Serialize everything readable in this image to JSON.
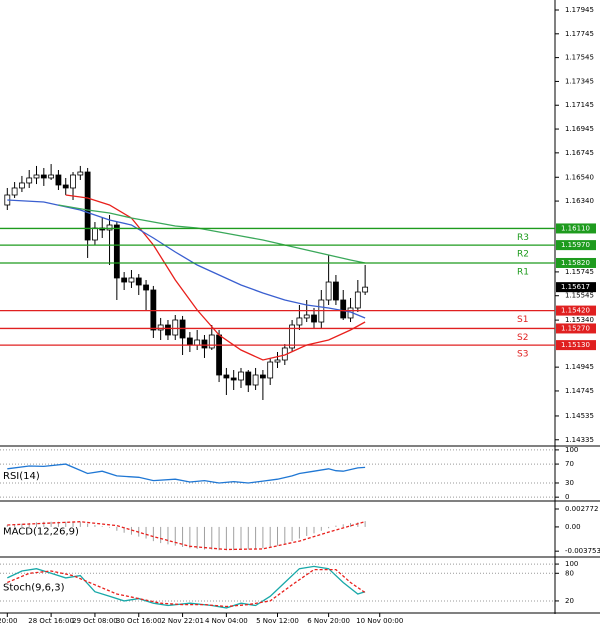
{
  "chart_data": [
    {
      "type": "candlestick",
      "xlim": [
        -1,
        75
      ],
      "ylim": [
        1.14291,
        1.18029
      ],
      "yticks": [
        1.17945,
        1.17745,
        1.17545,
        1.17345,
        1.17145,
        1.16945,
        1.16745,
        {
          "value": 1.1654,
          "label": "1.16540"
        },
        {
          "value": 1.1634,
          "label": "1.16340"
        },
        1.15745,
        1.15545,
        {
          "value": 1.1534,
          "label": "1.15340"
        },
        1.14945,
        1.14745,
        1.14535,
        1.14335
      ],
      "xticks": [
        {
          "value": 0,
          "label": "20:00"
        },
        {
          "value": 6,
          "label": "28 Oct 16:00"
        },
        {
          "value": 12,
          "label": "29 Oct 08:00"
        },
        {
          "value": 18,
          "label": "30 Oct 16:00"
        },
        {
          "value": 24,
          "label": "2 Nov 22:01"
        },
        {
          "value": 30,
          "label": "4 Nov 04:00"
        },
        {
          "value": 37,
          "label": "5 Nov 12:00"
        },
        {
          "value": 44,
          "label": "6 Nov 20:00"
        },
        {
          "value": 51,
          "label": "10 Nov 00:00"
        }
      ],
      "open": [
        1.16307,
        1.16391,
        1.1645,
        1.16492,
        1.16534,
        1.16559,
        1.16534,
        1.16559,
        1.16475,
        1.1645,
        1.16559,
        1.16584,
        1.16013,
        1.16114,
        1.16097,
        1.16139,
        1.15694,
        1.1566,
        1.15694,
        1.15635,
        1.15593,
        1.15257,
        1.15299,
        1.15215,
        1.15341,
        1.1519,
        1.15131,
        1.15173,
        1.15106,
        1.15215,
        1.14879,
        1.14854,
        1.14837,
        1.14904,
        1.14795,
        1.14879,
        1.14854,
        1.14988,
        1.15005,
        1.15106,
        1.15299,
        1.15358,
        1.15383,
        1.15324,
        1.15509,
        1.1566,
        1.15509,
        1.15358,
        1.15442,
        1.15576
      ],
      "high": [
        1.1645,
        1.165,
        1.16551,
        1.16601,
        1.16635,
        1.16618,
        1.16651,
        1.16601,
        1.16534,
        1.16584,
        1.16635,
        1.16618,
        1.16164,
        1.16198,
        1.16223,
        1.16164,
        1.15744,
        1.15761,
        1.15727,
        1.15677,
        1.15627,
        1.15358,
        1.15341,
        1.15383,
        1.15375,
        1.1524,
        1.15257,
        1.15215,
        1.15299,
        1.15257,
        1.14938,
        1.14921,
        1.14938,
        1.14921,
        1.14938,
        1.14921,
        1.15022,
        1.15072,
        1.15139,
        1.15341,
        1.15467,
        1.15509,
        1.15442,
        1.15593,
        1.15887,
        1.15719,
        1.15593,
        1.15526,
        1.15677,
        1.15803
      ],
      "low": [
        1.16265,
        1.16366,
        1.16416,
        1.1645,
        1.16483,
        1.16467,
        1.16517,
        1.16433,
        1.16391,
        1.16349,
        1.16517,
        1.15862,
        1.15971,
        1.1603,
        1.15803,
        1.15509,
        1.15593,
        1.1561,
        1.15551,
        1.15425,
        1.1519,
        1.15173,
        1.15173,
        1.15173,
        1.15047,
        1.15072,
        1.15089,
        1.15022,
        1.15089,
        1.1482,
        1.14711,
        1.14753,
        1.1477,
        1.14736,
        1.14753,
        1.14669,
        1.14795,
        1.14938,
        1.14963,
        1.15072,
        1.15257,
        1.15324,
        1.15274,
        1.15274,
        1.15467,
        1.15467,
        1.15341,
        1.15324,
        1.15408,
        1.15551
      ],
      "close": [
        1.16391,
        1.1645,
        1.16492,
        1.16534,
        1.16559,
        1.16534,
        1.16559,
        1.16475,
        1.1645,
        1.16559,
        1.16584,
        1.16013,
        1.16114,
        1.16097,
        1.16139,
        1.15694,
        1.1566,
        1.15694,
        1.15635,
        1.15593,
        1.15257,
        1.15299,
        1.15215,
        1.15341,
        1.1519,
        1.15131,
        1.15173,
        1.15106,
        1.15215,
        1.14879,
        1.14854,
        1.14837,
        1.14904,
        1.14795,
        1.14879,
        1.14854,
        1.14988,
        1.15005,
        1.15106,
        1.15299,
        1.15358,
        1.15383,
        1.15324,
        1.15509,
        1.1566,
        1.15509,
        1.15358,
        1.15442,
        1.15576,
        1.15617
      ],
      "up_color": "#ffffff",
      "down_color": "#000000",
      "series": [
        {
          "color": "#e8201c",
          "x": [
            8,
            11,
            14,
            17,
            20,
            23,
            26,
            29,
            32,
            35,
            38,
            41,
            44,
            47,
            49
          ],
          "values": [
            1.16391,
            1.16366,
            1.16307,
            1.16198,
            1.15971,
            1.15677,
            1.15425,
            1.15215,
            1.15089,
            1.15005,
            1.15047,
            1.15131,
            1.15173,
            1.15257,
            1.15324
          ]
        },
        {
          "color": "#3a5fd0",
          "x": [
            0,
            5,
            10,
            14,
            17,
            20,
            23,
            26,
            29,
            32,
            35,
            38,
            41,
            44,
            47,
            49
          ],
          "values": [
            1.16349,
            1.16332,
            1.16265,
            1.16181,
            1.16139,
            1.1603,
            1.15912,
            1.15803,
            1.15719,
            1.15635,
            1.15568,
            1.15509,
            1.15467,
            1.15442,
            1.15408,
            1.15358
          ]
        },
        {
          "color": "#3aa85a",
          "x": [
            7,
            11,
            14,
            17,
            20,
            23,
            26,
            29,
            32,
            35,
            38,
            41,
            44,
            47,
            49
          ],
          "values": [
            1.16307,
            1.16265,
            1.1624,
            1.16198,
            1.16164,
            1.16131,
            1.16114,
            1.1608,
            1.16047,
            1.16013,
            1.15971,
            1.15929,
            1.15887,
            1.15845,
            1.1582
          ]
        }
      ],
      "levels": [
        {
          "label": "R3",
          "value": 1.1611,
          "value_label": "1.16110",
          "color": "#1e9b1e"
        },
        {
          "label": "R2",
          "value": 1.1597,
          "value_label": "1.15970",
          "color": "#1e9b1e"
        },
        {
          "label": "R1",
          "value": 1.1582,
          "value_label": "1.15820",
          "color": "#1e9b1e"
        },
        {
          "label": "S1",
          "value": 1.1542,
          "value_label": "1.15420",
          "color": "#e02020"
        },
        {
          "label": "S2",
          "value": 1.1527,
          "value_label": "1.15270",
          "color": "#e02020"
        },
        {
          "label": "S3",
          "value": 1.1513,
          "value_label": "1.15130",
          "color": "#e02020"
        }
      ],
      "last": 1.15617
    },
    {
      "type": "line",
      "title": "RSI(14)",
      "ylim": [
        -6,
        104
      ],
      "yticks": [
        100,
        70,
        30,
        0
      ],
      "grid": true,
      "series": [
        {
          "color": "#1f77d4",
          "x": [
            0,
            3,
            5,
            8,
            11,
            13,
            15,
            18,
            20,
            23,
            25,
            27,
            29,
            31,
            33,
            35,
            37,
            39,
            40,
            42,
            44,
            45,
            46,
            48,
            49
          ],
          "values": [
            60,
            66,
            65,
            70,
            50,
            55,
            45,
            42,
            35,
            38,
            32,
            35,
            30,
            33,
            30,
            34,
            38,
            45,
            50,
            55,
            60,
            56,
            55,
            62,
            63
          ]
        }
      ]
    },
    {
      "type": "macd",
      "title": "MACD(12,26,9)",
      "ylim": [
        -0.0045,
        0.0037
      ],
      "yticks": [
        0.002772,
        {
          "value": 0,
          "label": "0.00"
        },
        -0.003753
      ],
      "histogram": {
        "color": "#a0a0a0",
        "values": [
          0.0003,
          0.0004,
          0.0005,
          0.0006,
          0.0007,
          0.0008,
          0.0008,
          0.0008,
          0.0008,
          0.0008,
          0.0008,
          0.0005,
          0.0003,
          0.0001,
          -0.0001,
          -0.0006,
          -0.0009,
          -0.0012,
          -0.0015,
          -0.0018,
          -0.0022,
          -0.0025,
          -0.0027,
          -0.0029,
          -0.0031,
          -0.0033,
          -0.0034,
          -0.0035,
          -0.0035,
          -0.0036,
          -0.0036,
          -0.0036,
          -0.0035,
          -0.0035,
          -0.0034,
          -0.0033,
          -0.0031,
          -0.0029,
          -0.0026,
          -0.0022,
          -0.0018,
          -0.0014,
          -0.001,
          -0.0006,
          -0.0002,
          0.0002,
          0.0004,
          0.0006,
          0.0007,
          0.0009
        ]
      },
      "series": [
        {
          "color": "#e8201c",
          "dash": true,
          "x": [
            0,
            10,
            15,
            20,
            25,
            30,
            35,
            40,
            44,
            49
          ],
          "values": [
            0.0003,
            0.0008,
            0.0002,
            -0.0015,
            -0.003,
            -0.0035,
            -0.0034,
            -0.0022,
            -0.0008,
            0.0008
          ]
        }
      ]
    },
    {
      "type": "line",
      "title": "Stoch(9,6,3)",
      "ylim": [
        -4,
        111
      ],
      "yticks": [
        100,
        80,
        20
      ],
      "grid": true,
      "series": [
        {
          "color": "#18a8a8",
          "x": [
            0,
            2,
            4,
            6,
            8,
            10,
            12,
            14,
            16,
            18,
            20,
            22,
            25,
            28,
            30,
            32,
            34,
            36,
            38,
            40,
            42,
            44,
            46,
            48,
            49
          ],
          "values": [
            70,
            85,
            90,
            80,
            70,
            75,
            40,
            30,
            20,
            25,
            15,
            10,
            15,
            10,
            5,
            15,
            10,
            30,
            60,
            90,
            95,
            90,
            60,
            35,
            40
          ]
        },
        {
          "color": "#e8201c",
          "dash": true,
          "x": [
            0,
            3,
            6,
            9,
            12,
            15,
            18,
            21,
            24,
            27,
            30,
            33,
            36,
            39,
            42,
            45,
            47,
            49
          ],
          "values": [
            60,
            80,
            85,
            75,
            55,
            35,
            25,
            15,
            12,
            12,
            8,
            12,
            20,
            55,
            88,
            88,
            60,
            38
          ]
        }
      ]
    }
  ]
}
